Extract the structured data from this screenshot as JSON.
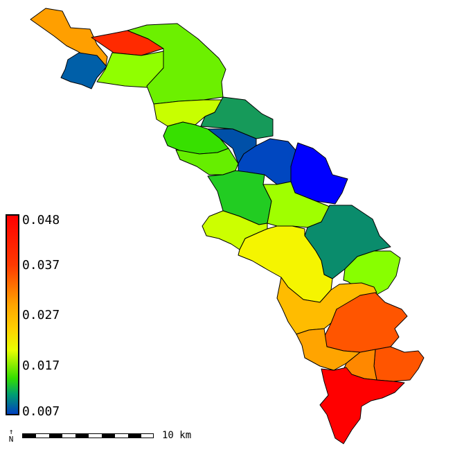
{
  "legend": {
    "ticks": [
      "0.048",
      "0.037",
      "0.027",
      "0.017",
      "0.007"
    ],
    "colors": [
      "#ff0000",
      "#ff3a00",
      "#ffa500",
      "#ffd000",
      "#e8ff00",
      "#33dd00",
      "#00a070",
      "#0040c0"
    ]
  },
  "scale": {
    "label": "10 km"
  },
  "north": {
    "symbol": "N"
  },
  "regions": [
    {
      "id": "r1",
      "value": 0.03,
      "color": "#ff9f00"
    },
    {
      "id": "r2",
      "value": 0.044,
      "color": "#ff2a00"
    },
    {
      "id": "r3",
      "value": 0.008,
      "color": "#005fa8"
    },
    {
      "id": "r4",
      "value": 0.019,
      "color": "#90ff00"
    },
    {
      "id": "r5",
      "value": 0.018,
      "color": "#6cf000"
    },
    {
      "id": "r6",
      "value": 0.019,
      "color": "#c8ff00"
    },
    {
      "id": "r7",
      "value": 0.013,
      "color": "#169a5a"
    },
    {
      "id": "r8",
      "value": 0.008,
      "color": "#0050a8"
    },
    {
      "id": "r9",
      "value": 0.017,
      "color": "#37e000"
    },
    {
      "id": "r10",
      "value": 0.018,
      "color": "#66ee00"
    },
    {
      "id": "r11",
      "value": 0.007,
      "color": "#0047c0"
    },
    {
      "id": "r12",
      "value": 0.007,
      "color": "#0000ff"
    },
    {
      "id": "r13",
      "value": 0.016,
      "color": "#22cc22"
    },
    {
      "id": "r14",
      "value": 0.019,
      "color": "#a0ff00"
    },
    {
      "id": "r15",
      "value": 0.02,
      "color": "#ccff00"
    },
    {
      "id": "r16",
      "value": 0.013,
      "color": "#0a8c6c"
    },
    {
      "id": "r17",
      "value": 0.024,
      "color": "#f5f500"
    },
    {
      "id": "r18",
      "value": 0.019,
      "color": "#88ff00"
    },
    {
      "id": "r19",
      "value": 0.028,
      "color": "#ffbc00"
    },
    {
      "id": "r20",
      "value": 0.037,
      "color": "#ff5500"
    },
    {
      "id": "r21",
      "value": 0.03,
      "color": "#ffa400"
    },
    {
      "id": "r22",
      "value": 0.037,
      "color": "#ff5500"
    },
    {
      "id": "r23",
      "value": 0.033,
      "color": "#ff8800"
    },
    {
      "id": "r24",
      "value": 0.048,
      "color": "#ff0000"
    }
  ]
}
